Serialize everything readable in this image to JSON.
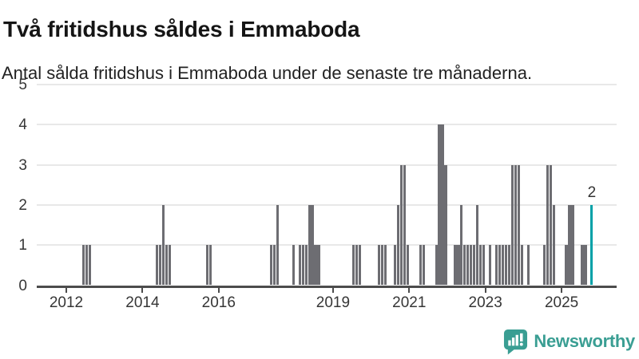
{
  "title": "Två fritidshus såldes i Emmaboda",
  "subtitle": "Antal sålda fritidshus i Emmaboda under de senaste tre månaderna.",
  "branding": {
    "logo_text": "Newsworthy",
    "logo_color": "#3a9e93"
  },
  "chart_data": {
    "type": "bar",
    "title": "Två fritidshus såldes i Emmaboda",
    "subtitle": "Antal sålda fritidshus i Emmaboda under de senaste tre månaderna.",
    "xlabel": "",
    "ylabel": "",
    "ylim": [
      0,
      5
    ],
    "grid": "horizontal",
    "bar_color": "#6d6d72",
    "highlight_color": "#00a1a8",
    "y_ticks": [
      "0",
      "1",
      "2",
      "3",
      "4",
      "5"
    ],
    "x_ticks": [
      {
        "label": "2012",
        "year": 2012
      },
      {
        "label": "2014",
        "year": 2014
      },
      {
        "label": "2016",
        "year": 2016
      },
      {
        "label": "2019",
        "year": 2019
      },
      {
        "label": "2021",
        "year": 2021
      },
      {
        "label": "2023",
        "year": 2023
      },
      {
        "label": "2025",
        "year": 2025
      }
    ],
    "x_domain_start": "2011-04",
    "x_domain_end": "2026-05",
    "months": [
      [
        "2012-06",
        1
      ],
      [
        "2012-07",
        1
      ],
      [
        "2012-08",
        1
      ],
      [
        "2014-05",
        1
      ],
      [
        "2014-06",
        1
      ],
      [
        "2014-07",
        2
      ],
      [
        "2014-08",
        1
      ],
      [
        "2014-09",
        1
      ],
      [
        "2015-09",
        1
      ],
      [
        "2015-10",
        1
      ],
      [
        "2017-05",
        1
      ],
      [
        "2017-06",
        1
      ],
      [
        "2017-07",
        2
      ],
      [
        "2017-12",
        1
      ],
      [
        "2018-02",
        1
      ],
      [
        "2018-03",
        1
      ],
      [
        "2018-04",
        1
      ],
      [
        "2018-05",
        2
      ],
      [
        "2018-06",
        2
      ],
      [
        "2018-07",
        1
      ],
      [
        "2018-08",
        1
      ],
      [
        "2019-07",
        1
      ],
      [
        "2019-08",
        1
      ],
      [
        "2019-09",
        1
      ],
      [
        "2020-03",
        1
      ],
      [
        "2020-04",
        1
      ],
      [
        "2020-05",
        1
      ],
      [
        "2020-08",
        1
      ],
      [
        "2020-09",
        2
      ],
      [
        "2020-10",
        3
      ],
      [
        "2020-11",
        3
      ],
      [
        "2020-12",
        1
      ],
      [
        "2021-04",
        1
      ],
      [
        "2021-05",
        1
      ],
      [
        "2021-09",
        1
      ],
      [
        "2021-10",
        4
      ],
      [
        "2021-11",
        4
      ],
      [
        "2021-12",
        3
      ],
      [
        "2022-03",
        1
      ],
      [
        "2022-04",
        1
      ],
      [
        "2022-05",
        2
      ],
      [
        "2022-06",
        1
      ],
      [
        "2022-07",
        1
      ],
      [
        "2022-08",
        1
      ],
      [
        "2022-09",
        1
      ],
      [
        "2022-10",
        2
      ],
      [
        "2022-11",
        1
      ],
      [
        "2022-12",
        1
      ],
      [
        "2023-02",
        1
      ],
      [
        "2023-04",
        1
      ],
      [
        "2023-05",
        1
      ],
      [
        "2023-06",
        1
      ],
      [
        "2023-07",
        1
      ],
      [
        "2023-08",
        1
      ],
      [
        "2023-09",
        3
      ],
      [
        "2023-10",
        3
      ],
      [
        "2023-11",
        3
      ],
      [
        "2023-12",
        1
      ],
      [
        "2024-02",
        1
      ],
      [
        "2024-07",
        1
      ],
      [
        "2024-08",
        3
      ],
      [
        "2024-09",
        3
      ],
      [
        "2024-10",
        2
      ],
      [
        "2025-02",
        1
      ],
      [
        "2025-03",
        2
      ],
      [
        "2025-04",
        2
      ],
      [
        "2025-07",
        1
      ],
      [
        "2025-08",
        1
      ]
    ],
    "highlight": {
      "month": "2025-10",
      "value": 2,
      "label": "2"
    }
  }
}
